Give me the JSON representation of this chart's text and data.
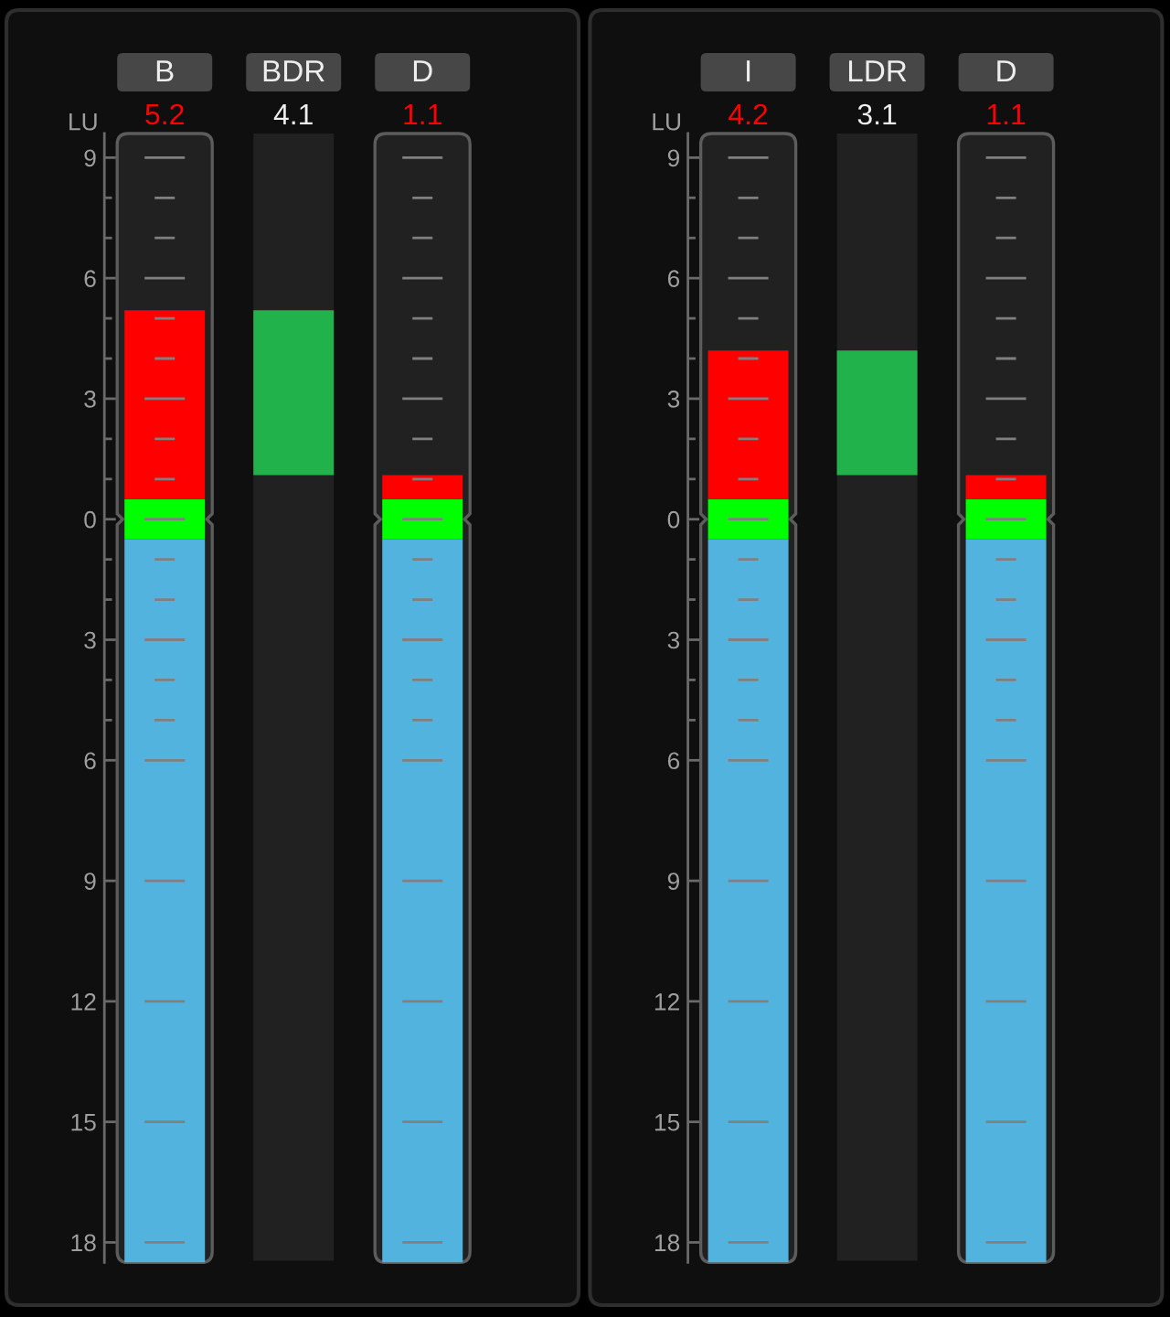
{
  "chart_data": [
    {
      "type": "bar",
      "categories": [
        "B",
        "BDR",
        "D"
      ],
      "ylabel": "LU",
      "series": [
        {
          "color": "#52b4de",
          "base": [
            -18.5,
            null,
            -18.5
          ],
          "values": [
            18.0,
            null,
            18.0
          ]
        },
        {
          "colors": [
            "#00ff00",
            "#22b24c",
            "#00ff00"
          ],
          "base": [
            -0.5,
            1.1,
            -0.5
          ],
          "values": [
            1.0,
            4.1,
            1.0
          ]
        },
        {
          "color": "#ff0000",
          "base": [
            0.5,
            null,
            0.5
          ],
          "values": [
            4.7,
            null,
            0.6
          ]
        }
      ],
      "annotations": [
        "5.2",
        "4.1",
        "1.1"
      ],
      "ylim": [
        -18.5,
        9.6
      ],
      "yticks": [
        9,
        {
          "value": 8,
          "label": null
        },
        {
          "value": 7,
          "label": null
        },
        6,
        {
          "value": 5,
          "label": null
        },
        {
          "value": 4,
          "label": null
        },
        3,
        {
          "value": 2,
          "label": null
        },
        {
          "value": 1,
          "label": null
        },
        0,
        {
          "value": -1,
          "label": null
        },
        {
          "value": -2,
          "label": null
        },
        {
          "value": -3,
          "label": "3"
        },
        {
          "value": -4,
          "label": null
        },
        {
          "value": -5,
          "label": null
        },
        {
          "value": -6,
          "label": "6"
        },
        {
          "value": -9,
          "label": "9"
        },
        {
          "value": -12,
          "label": "12"
        },
        {
          "value": -15,
          "label": "15"
        },
        {
          "value": -18,
          "label": "18"
        }
      ],
      "grid": "y"
    },
    {
      "type": "bar",
      "categories": [
        "I",
        "LDR",
        "D"
      ],
      "ylabel": "LU",
      "series": [
        {
          "color": "#52b4de",
          "base": [
            -18.5,
            null,
            -18.5
          ],
          "values": [
            18.0,
            null,
            18.0
          ]
        },
        {
          "colors": [
            "#00ff00",
            "#22b24c",
            "#00ff00"
          ],
          "base": [
            -0.5,
            1.1,
            -0.5
          ],
          "values": [
            1.0,
            3.1,
            1.0
          ]
        },
        {
          "color": "#ff0000",
          "base": [
            0.5,
            null,
            0.5
          ],
          "values": [
            3.7,
            null,
            0.6
          ]
        }
      ],
      "annotations": [
        "4.2",
        "3.1",
        "1.1"
      ],
      "ylim": [
        -18.5,
        9.6
      ],
      "yticks": [
        9,
        {
          "value": 8,
          "label": null
        },
        {
          "value": 7,
          "label": null
        },
        6,
        {
          "value": 5,
          "label": null
        },
        {
          "value": 4,
          "label": null
        },
        3,
        {
          "value": 2,
          "label": null
        },
        {
          "value": 1,
          "label": null
        },
        0,
        {
          "value": -1,
          "label": null
        },
        {
          "value": -2,
          "label": null
        },
        {
          "value": -3,
          "label": "3"
        },
        {
          "value": -4,
          "label": null
        },
        {
          "value": -5,
          "label": null
        },
        {
          "value": -6,
          "label": "6"
        },
        {
          "value": -9,
          "label": "9"
        },
        {
          "value": -12,
          "label": "12"
        },
        {
          "value": -15,
          "label": "15"
        },
        {
          "value": -18,
          "label": "18"
        }
      ],
      "grid": "y"
    }
  ]
}
